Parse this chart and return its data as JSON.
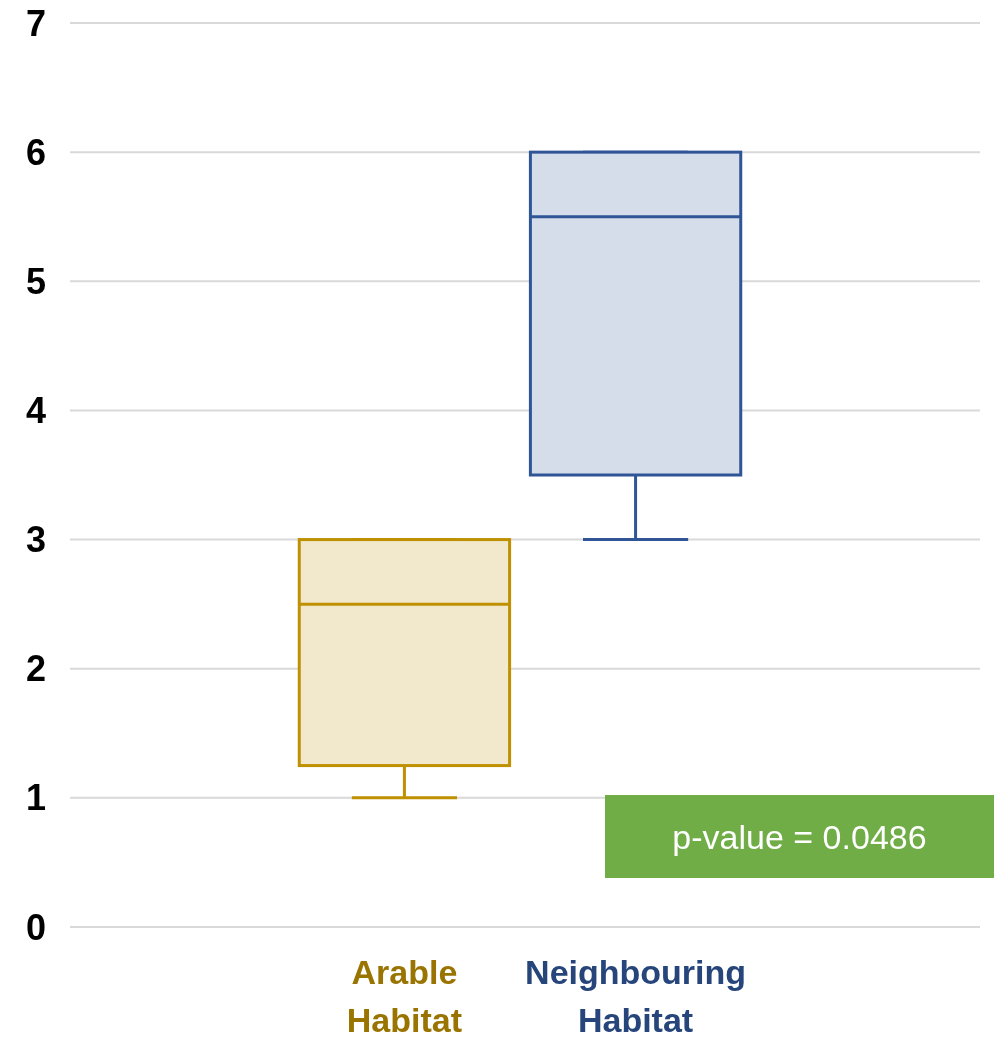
{
  "chart_data": {
    "type": "box",
    "categories": [
      "Arable Habitat",
      "Neighbouring Habitat"
    ],
    "boxes": [
      {
        "low": 1,
        "q1": 1.25,
        "median": 2.5,
        "q3": 3,
        "high": 3
      },
      {
        "low": 3,
        "q1": 3.5,
        "median": 5.5,
        "q3": 6,
        "high": 6
      }
    ],
    "colors": [
      "#bf9000",
      "#2f5597"
    ],
    "ylim": [
      0,
      7
    ],
    "yticks": [
      0,
      1,
      2,
      3,
      4,
      5,
      6,
      7
    ],
    "grid": "y",
    "annotations": [
      "p-value = 0.0486"
    ]
  }
}
